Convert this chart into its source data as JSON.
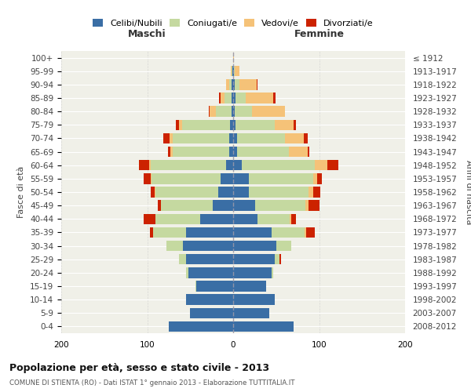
{
  "age_groups": [
    "0-4",
    "5-9",
    "10-14",
    "15-19",
    "20-24",
    "25-29",
    "30-34",
    "35-39",
    "40-44",
    "45-49",
    "50-54",
    "55-59",
    "60-64",
    "65-69",
    "70-74",
    "75-79",
    "80-84",
    "85-89",
    "90-94",
    "95-99",
    "100+"
  ],
  "birth_years": [
    "2008-2012",
    "2003-2007",
    "1998-2002",
    "1993-1997",
    "1988-1992",
    "1983-1987",
    "1978-1982",
    "1973-1977",
    "1968-1972",
    "1963-1967",
    "1958-1962",
    "1953-1957",
    "1948-1952",
    "1943-1947",
    "1938-1942",
    "1933-1937",
    "1928-1932",
    "1923-1927",
    "1918-1922",
    "1913-1917",
    "≤ 1912"
  ],
  "males": {
    "celibe": [
      75,
      50,
      55,
      43,
      52,
      55,
      58,
      55,
      38,
      24,
      17,
      15,
      8,
      5,
      5,
      4,
      2,
      2,
      2,
      1,
      0
    ],
    "coniugato": [
      0,
      0,
      0,
      1,
      3,
      8,
      20,
      38,
      52,
      60,
      73,
      80,
      88,
      65,
      65,
      55,
      18,
      8,
      3,
      1,
      0
    ],
    "vedovo": [
      0,
      0,
      0,
      0,
      0,
      0,
      0,
      0,
      0,
      0,
      1,
      1,
      2,
      3,
      4,
      4,
      7,
      5,
      3,
      1,
      0
    ],
    "divorziato": [
      0,
      0,
      0,
      0,
      0,
      0,
      0,
      4,
      14,
      4,
      5,
      8,
      12,
      3,
      7,
      4,
      1,
      1,
      0,
      0,
      0
    ]
  },
  "females": {
    "nubile": [
      70,
      42,
      48,
      38,
      45,
      48,
      50,
      45,
      28,
      26,
      18,
      18,
      10,
      5,
      5,
      3,
      2,
      3,
      2,
      1,
      0
    ],
    "coniugata": [
      0,
      0,
      0,
      0,
      2,
      6,
      18,
      38,
      38,
      58,
      70,
      75,
      85,
      60,
      55,
      45,
      20,
      12,
      5,
      1,
      0
    ],
    "vedova": [
      0,
      0,
      0,
      0,
      0,
      0,
      0,
      2,
      2,
      4,
      5,
      5,
      15,
      22,
      22,
      22,
      38,
      32,
      20,
      5,
      1
    ],
    "divorziata": [
      0,
      0,
      0,
      0,
      0,
      2,
      0,
      10,
      5,
      12,
      8,
      5,
      12,
      2,
      5,
      3,
      0,
      2,
      1,
      0,
      0
    ]
  },
  "colors": {
    "celibe": "#3a6ea5",
    "coniugato": "#c5d9a0",
    "vedovo": "#f5c278",
    "divorziato": "#cc2200"
  },
  "title": "Popolazione per età, sesso e stato civile - 2013",
  "subtitle": "COMUNE DI STIENTA (RO) - Dati ISTAT 1° gennaio 2013 - Elaborazione TUTTITALIA.IT",
  "xlabel_left": "Maschi",
  "xlabel_right": "Femmine",
  "ylabel_left": "Fasce di età",
  "ylabel_right": "Anni di nascita",
  "xlim": 200,
  "legend_labels": [
    "Celibi/Nubili",
    "Coniugati/e",
    "Vedovi/e",
    "Divorziati/e"
  ],
  "bg_color": "#f0f0e8",
  "grid_color": "#cccccc"
}
